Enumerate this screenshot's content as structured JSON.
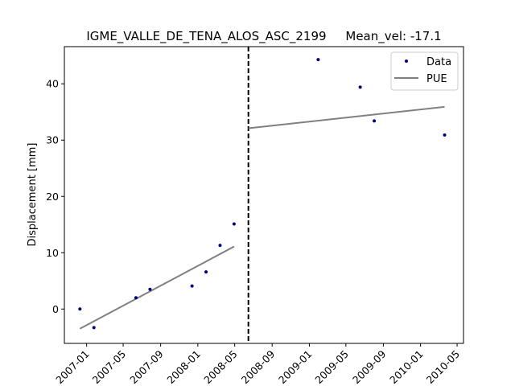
{
  "chart_data": {
    "type": "scatter",
    "title": "IGME_VALLE_DE_TENA_ALOS_ASC_2199     Mean_vel: -17.1",
    "xlabel": "",
    "ylabel": "Displacement [mm]",
    "xlim": [
      "2006-10-20",
      "2010-05-22"
    ],
    "ylim": [
      -6.1,
      46.6
    ],
    "xticks": [
      "2007-01",
      "2007-05",
      "2007-09",
      "2008-01",
      "2008-05",
      "2008-09",
      "2009-01",
      "2009-05",
      "2009-09",
      "2010-01",
      "2010-05"
    ],
    "yticks": [
      0,
      10,
      20,
      30,
      40
    ],
    "grid": false,
    "legend_position": "top-right",
    "colors": {
      "data": "#00007f",
      "fit": "#808080",
      "break_line": "#000000"
    },
    "series": [
      {
        "name": "Data",
        "style": "points",
        "points": [
          {
            "x": "2006-12-10",
            "y": 0.0
          },
          {
            "x": "2007-01-25",
            "y": -3.3
          },
          {
            "x": "2007-06-12",
            "y": 2.0
          },
          {
            "x": "2007-07-28",
            "y": 3.5
          },
          {
            "x": "2007-12-13",
            "y": 4.1
          },
          {
            "x": "2008-01-28",
            "y": 6.6
          },
          {
            "x": "2008-03-14",
            "y": 11.3
          },
          {
            "x": "2008-04-29",
            "y": 15.1
          },
          {
            "x": "2009-01-30",
            "y": 44.3
          },
          {
            "x": "2009-06-17",
            "y": 39.4
          },
          {
            "x": "2009-08-02",
            "y": 33.4
          },
          {
            "x": "2010-03-21",
            "y": 30.9
          }
        ]
      },
      {
        "name": "PUE",
        "style": "line",
        "segments": [
          [
            {
              "x": "2006-12-10",
              "y": -3.5
            },
            {
              "x": "2008-04-29",
              "y": 11.1
            }
          ],
          [
            {
              "x": "2008-06-15",
              "y": 32.1
            },
            {
              "x": "2010-03-21",
              "y": 35.9
            }
          ]
        ]
      }
    ],
    "vertical_line": {
      "x": "2008-06-15",
      "style": "dashed"
    }
  }
}
